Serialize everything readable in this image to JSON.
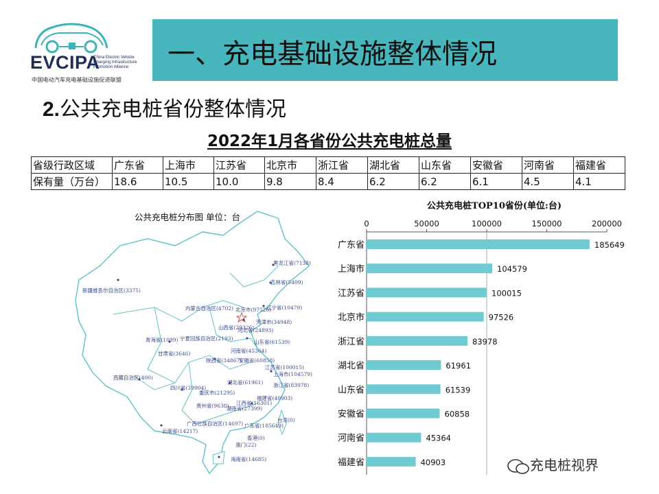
{
  "logo": {
    "abbr": "EVCIPA",
    "en_line1": "China Electric Vehicle",
    "en_line2": "Charging Infrastructure",
    "en_line3": "Promotion Alliance",
    "cn_name": "中国电动汽车充电基础设施促进联盟"
  },
  "header": {
    "title": "一、充电基础设施整体情况"
  },
  "section": {
    "number": "2.",
    "title": "公共充电桩省份整体情况"
  },
  "table": {
    "title": "2022年1月各省份公共充电桩总量",
    "row1": [
      "省级行政区域",
      "广东省",
      "上海市",
      "江苏省",
      "北京市",
      "浙江省",
      "湖北省",
      "山东省",
      "安徽省",
      "河南省",
      "福建省"
    ],
    "row2": [
      "保有量（万台）",
      "18.6",
      "10.5",
      "10.0",
      "9.8",
      "8.4",
      "6.2",
      "6.2",
      "6.1",
      "4.5",
      "4.1"
    ]
  },
  "map": {
    "title": "公共充电桩分布图   单位：台",
    "labels": [
      "黑龙江省(7138)",
      "吉林省(5409)",
      "辽宁省(10479)",
      "内蒙古自治区(4702)",
      "北京市(97526)",
      "天津市(34948)",
      "新疆维吾尔自治区(3375)",
      "山西省(29326)",
      "河北省(24893)",
      "山东省(61539)",
      "青海省(1099)",
      "宁夏回族自治区(2193)",
      "甘肃省(3646)",
      "河南省(45364)",
      "陕西省(34867)",
      "安徽省(60858)",
      "江苏省(100015)",
      "上海市(104579)",
      "西藏自治区(400)",
      "湖北省(61961)",
      "浙江省(83978)",
      "四川省(39904)",
      "重庆市(21295)",
      "福建省(40903)",
      "贵州省(9638)",
      "湖南省(27399)",
      "江西省(16301)",
      "台湾(0)",
      "云南省(14217)",
      "广西壮族自治区(14697)",
      "广东省(185649)",
      "香港(0)",
      "澳门(22)",
      "海南省(14685)"
    ]
  },
  "chart_data": {
    "type": "bar",
    "orientation": "horizontal",
    "title": "公共充电桩TOP10省份(单位:台)",
    "categories": [
      "广东省",
      "上海市",
      "江苏省",
      "北京市",
      "浙江省",
      "湖北省",
      "山东省",
      "安徽省",
      "河南省",
      "福建省"
    ],
    "values": [
      185649,
      104579,
      100015,
      97526,
      83978,
      61961,
      61539,
      60858,
      45364,
      40903
    ],
    "xlim": [
      0,
      200000
    ],
    "ticks": [
      "0",
      "50000",
      "100000",
      "150000",
      "200000"
    ],
    "bar_color": "#6fcad2",
    "legend": "none"
  },
  "watermark": {
    "text": "充电桩视界"
  },
  "colors": {
    "title_bar": "#47b6bd",
    "bar": "#6fcad2",
    "map_line": "#5fc0c8",
    "logo": "#1f2d5a"
  }
}
